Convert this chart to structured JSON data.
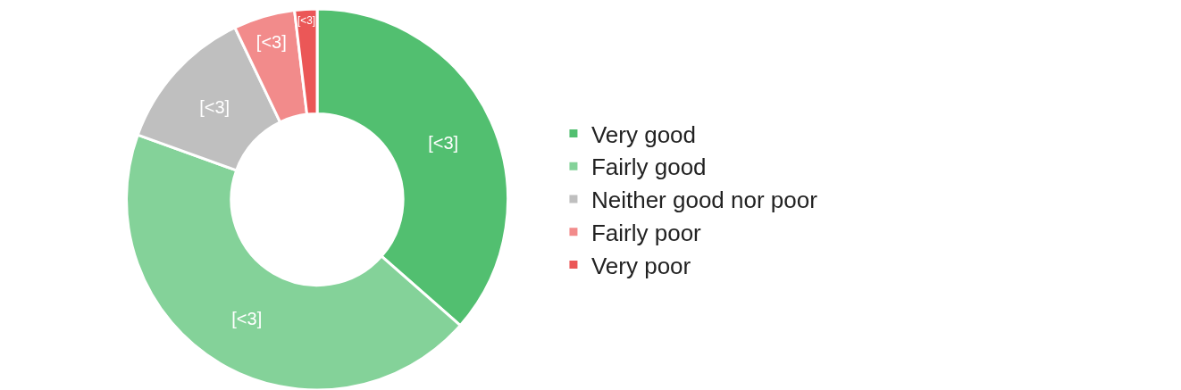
{
  "chart_data": {
    "type": "donut",
    "categories": [
      "Very good",
      "Fairly good",
      "Neither good nor poor",
      "Fairly poor",
      "Very poor"
    ],
    "values": [
      36.5,
      44,
      12.4,
      5.2,
      1.9
    ],
    "colors": [
      "#52bf70",
      "#84d299",
      "#bfbfbf",
      "#f28b8b",
      "#eb5757"
    ],
    "value_labels": [
      "[<3]",
      "[<3]",
      "[<3]",
      "[<3]",
      "[<3]"
    ],
    "legend": "right"
  }
}
